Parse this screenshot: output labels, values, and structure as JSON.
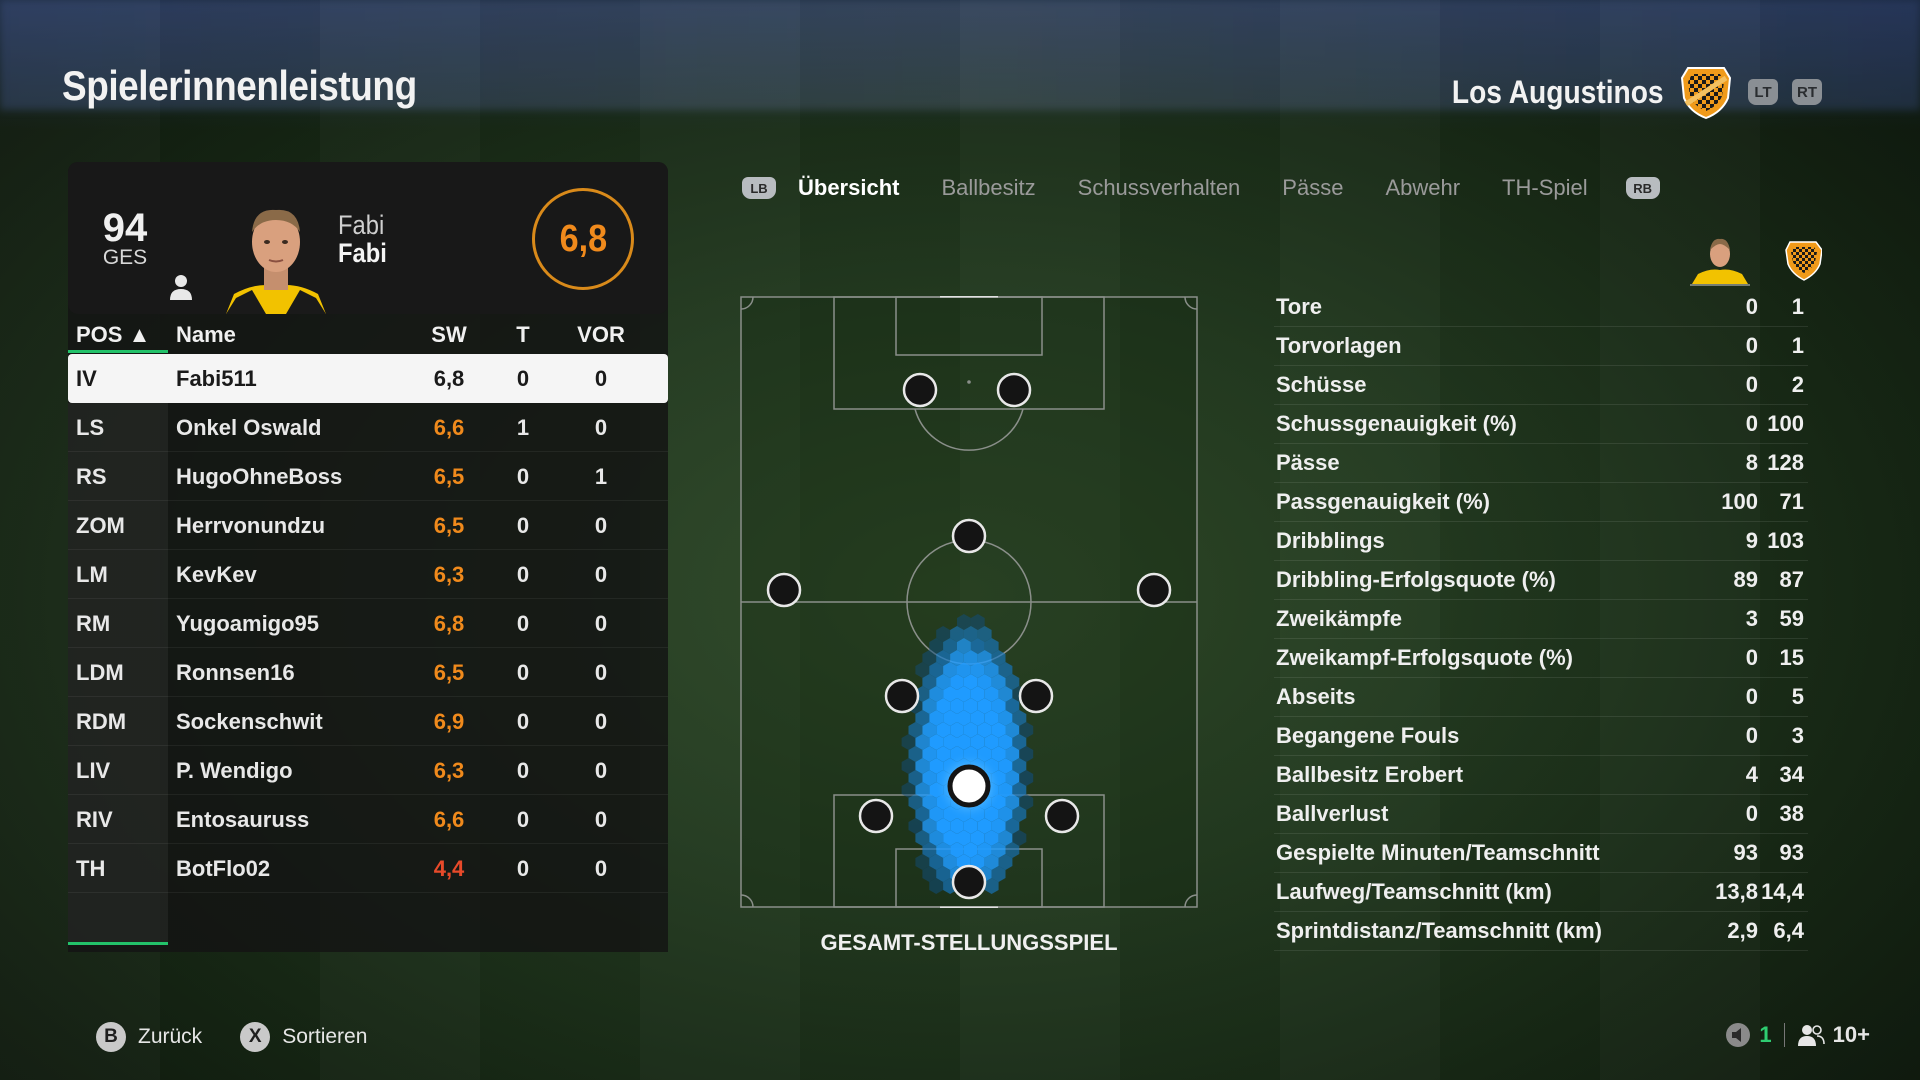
{
  "header": {
    "title": "Spielerinnenleistung",
    "team_name": "Los Augustinos",
    "lt": "LT",
    "rt": "RT"
  },
  "player_card": {
    "overall": "94",
    "overall_label": "GES",
    "first_name": "Fabi",
    "last_name": "Fabi",
    "rating": "6,8"
  },
  "table": {
    "headers": {
      "pos": "POS ▲",
      "name": "Name",
      "sw": "SW",
      "t": "T",
      "vor": "VOR"
    },
    "rows": [
      {
        "pos": "IV",
        "name": "Fabi511",
        "sw": "6,8",
        "t": "0",
        "vor": "0"
      },
      {
        "pos": "LS",
        "name": "Onkel Oswald",
        "sw": "6,6",
        "t": "1",
        "vor": "0"
      },
      {
        "pos": "RS",
        "name": "HugoOhneBoss",
        "sw": "6,5",
        "t": "0",
        "vor": "1"
      },
      {
        "pos": "ZOM",
        "name": "Herrvonundzu",
        "sw": "6,5",
        "t": "0",
        "vor": "0"
      },
      {
        "pos": "LM",
        "name": "KevKev",
        "sw": "6,3",
        "t": "0",
        "vor": "0"
      },
      {
        "pos": "RM",
        "name": "Yugoamigo95",
        "sw": "6,8",
        "t": "0",
        "vor": "0"
      },
      {
        "pos": "LDM",
        "name": "Ronnsen16",
        "sw": "6,5",
        "t": "0",
        "vor": "0"
      },
      {
        "pos": "RDM",
        "name": "Sockenschwit",
        "sw": "6,9",
        "t": "0",
        "vor": "0"
      },
      {
        "pos": "LIV",
        "name": "P. Wendigo",
        "sw": "6,3",
        "t": "0",
        "vor": "0"
      },
      {
        "pos": "RIV",
        "name": "Entosauruss",
        "sw": "6,6",
        "t": "0",
        "vor": "0"
      },
      {
        "pos": "TH",
        "name": "BotFlo02",
        "sw": "4,4",
        "t": "0",
        "vor": "0"
      }
    ]
  },
  "tabs": {
    "lb": "LB",
    "rb": "RB",
    "items": [
      "Übersicht",
      "Ballbesitz",
      "Schussverhalten",
      "Pässe",
      "Abwehr",
      "TH-Spiel"
    ],
    "active": "Übersicht"
  },
  "pitch": {
    "label": "GESAMT-STELLUNGSSPIEL"
  },
  "stats": [
    {
      "label": "Tore",
      "player": "0",
      "team": "1"
    },
    {
      "label": "Torvorlagen",
      "player": "0",
      "team": "1"
    },
    {
      "label": "Schüsse",
      "player": "0",
      "team": "2"
    },
    {
      "label": "Schussgenauigkeit (%)",
      "player": "0",
      "team": "100"
    },
    {
      "label": "Pässe",
      "player": "8",
      "team": "128"
    },
    {
      "label": "Passgenauigkeit (%)",
      "player": "100",
      "team": "71"
    },
    {
      "label": "Dribblings",
      "player": "9",
      "team": "103"
    },
    {
      "label": "Dribbling-Erfolgsquote (%)",
      "player": "89",
      "team": "87"
    },
    {
      "label": "Zweikämpfe",
      "player": "3",
      "team": "59"
    },
    {
      "label": "Zweikampf-Erfolgsquote (%)",
      "player": "0",
      "team": "15"
    },
    {
      "label": "Abseits",
      "player": "0",
      "team": "5"
    },
    {
      "label": "Begangene Fouls",
      "player": "0",
      "team": "3"
    },
    {
      "label": "Ballbesitz Erobert",
      "player": "4",
      "team": "34"
    },
    {
      "label": "Ballverlust",
      "player": "0",
      "team": "38"
    },
    {
      "label": "Gespielte Minuten/Teamschnitt",
      "player": "93",
      "team": "93"
    },
    {
      "label": "Laufweg/Teamschnitt (km)",
      "player": "13,8",
      "team": "14,4"
    },
    {
      "label": "Sprintdistanz/Teamschnitt (km)",
      "player": "2,9",
      "team": "6,4"
    }
  ],
  "footer": {
    "back_button": "B",
    "back_label": "Zurück",
    "sort_button": "X",
    "sort_label": "Sortieren",
    "mic_count": "1",
    "players_count": "10+"
  },
  "colors": {
    "rating_orange": "#f08a1c",
    "rating_red": "#e84a2a",
    "accent_green": "#23c26a",
    "heatmap_blue": "#1f9bff"
  }
}
